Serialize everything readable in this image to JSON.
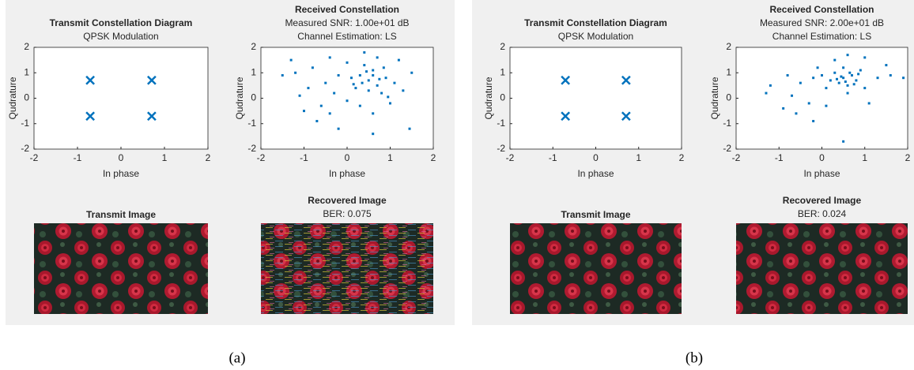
{
  "chart_data": [
    {
      "type": "scatter",
      "title": "Transmit Constellation Diagram",
      "subtitles": [
        "QPSK Modulation"
      ],
      "x_label": "In phase",
      "y_label": "Qudrature",
      "marker": "x",
      "color": "#0072bd",
      "x": [
        -0.707,
        0.707,
        -0.707,
        0.707
      ],
      "values": [
        0.707,
        0.707,
        -0.707,
        -0.707
      ],
      "xlim": [
        -2,
        2
      ],
      "ylim": [
        -2,
        2
      ],
      "xticks": [
        -2,
        -1,
        0,
        1,
        2
      ],
      "yticks": [
        -2,
        -1,
        0,
        1,
        2
      ]
    },
    {
      "type": "scatter",
      "title": "Received Constellation",
      "subtitles": [
        "Measured SNR: 1.00e+01 dB",
        "Channel Estimation: LS"
      ],
      "x_label": "In phase",
      "y_label": "Qudrature",
      "marker": "square",
      "color": "#0072bd",
      "x": [
        0.5,
        0.3,
        0.7,
        0.6,
        0.2,
        0.9,
        0.4,
        0.8,
        1.1,
        0.1,
        -0.2,
        -0.5,
        -0.9,
        -1.2,
        -1.3,
        -1.5,
        -0.8,
        -0.3,
        0.0,
        -0.6,
        -1.0,
        -0.7,
        -0.2,
        0.3,
        0.6,
        1.0,
        1.3,
        1.5,
        1.2,
        0.7,
        0.4,
        0.0,
        -0.4,
        0.5,
        0.6,
        0.35,
        0.75,
        0.45,
        0.15,
        0.85,
        1.45,
        0.6,
        -1.1,
        -0.4,
        0.95
      ],
      "values": [
        0.7,
        0.9,
        0.5,
        1.1,
        0.4,
        0.8,
        1.3,
        0.2,
        0.6,
        0.8,
        0.9,
        0.6,
        0.4,
        1.0,
        1.5,
        0.9,
        1.2,
        0.2,
        -0.1,
        -0.3,
        -0.5,
        -0.9,
        -1.2,
        -0.3,
        -0.6,
        -0.2,
        0.3,
        1.0,
        1.5,
        1.6,
        1.8,
        1.4,
        1.6,
        0.3,
        0.9,
        0.6,
        0.75,
        1.05,
        0.55,
        1.2,
        -1.2,
        -1.4,
        0.1,
        -0.6,
        0.05
      ],
      "xlim": [
        -2,
        2
      ],
      "ylim": [
        -2,
        2
      ],
      "xticks": [
        -2,
        -1,
        0,
        1,
        2
      ],
      "yticks": [
        -2,
        -1,
        0,
        1,
        2
      ]
    },
    {
      "type": "scatter",
      "title": "Transmit Constellation Diagram",
      "subtitles": [
        "QPSK Modulation"
      ],
      "x_label": "In phase",
      "y_label": "Qudrature",
      "marker": "x",
      "color": "#0072bd",
      "x": [
        -0.707,
        0.707,
        -0.707,
        0.707
      ],
      "values": [
        0.707,
        0.707,
        -0.707,
        -0.707
      ],
      "xlim": [
        -2,
        2
      ],
      "ylim": [
        -2,
        2
      ],
      "xticks": [
        -2,
        -1,
        0,
        1,
        2
      ],
      "yticks": [
        -2,
        -1,
        0,
        1,
        2
      ]
    },
    {
      "type": "scatter",
      "title": "Received Constellation",
      "subtitles": [
        "Measured SNR: 2.00e+01 dB",
        "Channel Estimation: LS"
      ],
      "x_label": "In phase",
      "y_label": "Qudrature",
      "marker": "square",
      "color": "#0072bd",
      "x": [
        0.5,
        0.4,
        0.7,
        0.3,
        0.6,
        0.8,
        0.2,
        0.5,
        0.9,
        0.1,
        -0.2,
        -0.5,
        -0.8,
        -1.2,
        -1.3,
        -0.7,
        -0.3,
        -0.6,
        -0.2,
        0.1,
        0.6,
        1.0,
        1.3,
        1.6,
        1.9,
        1.5,
        1.0,
        0.6,
        0.3,
        -0.1,
        0.45,
        0.55,
        0.65,
        0.35,
        0.75,
        0.5,
        -0.9,
        1.1,
        0.0,
        0.85
      ],
      "values": [
        0.8,
        0.6,
        0.9,
        1.0,
        0.5,
        0.7,
        0.7,
        1.2,
        1.1,
        0.4,
        0.8,
        0.6,
        0.9,
        0.5,
        0.2,
        0.1,
        -0.2,
        -0.6,
        -0.9,
        -0.3,
        0.2,
        0.4,
        0.8,
        0.9,
        0.8,
        1.3,
        1.6,
        1.7,
        1.5,
        1.2,
        0.85,
        0.65,
        1.0,
        0.75,
        0.55,
        -1.7,
        -0.4,
        -0.2,
        0.9,
        0.95
      ],
      "xlim": [
        -2,
        2
      ],
      "ylim": [
        -2,
        2
      ],
      "xticks": [
        -2,
        -1,
        0,
        1,
        2
      ],
      "yticks": [
        -2,
        -1,
        0,
        1,
        2
      ]
    }
  ],
  "images": [
    {
      "title": "Transmit Image"
    },
    {
      "title": "Recovered Image",
      "subtitle": "BER: 0.075"
    },
    {
      "title": "Transmit Image"
    },
    {
      "title": "Recovered Image",
      "subtitle": "BER: 0.024"
    }
  ],
  "captions": [
    "(a)",
    "(b)"
  ]
}
